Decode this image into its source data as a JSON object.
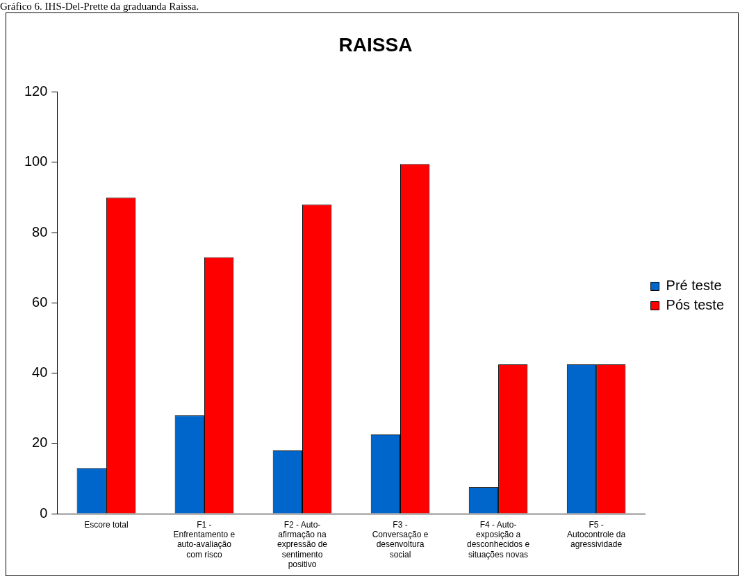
{
  "chart_data": {
    "type": "bar",
    "title": "RAISSA",
    "annotations": [
      "Gráfico 6. IHS-Del-Prette da graduanda Raissa."
    ],
    "categories": [
      "Escore total",
      "F1 - Enfrentamento e auto-avaliação com risco",
      "F2 - Auto-afirmação na expressão de sentimento positivo",
      "F3 - Conversação e desenvoltura social",
      "F4 - Auto-exposição a desconhecidos e situações novas",
      "F5 - Autocontrole da agressividade"
    ],
    "series": [
      {
        "name": "Pré teste",
        "color": "#0066cc",
        "values": [
          13,
          28,
          18,
          22.5,
          7.5,
          42.5
        ]
      },
      {
        "name": "Pós teste",
        "color": "#ff0000",
        "values": [
          90,
          73,
          88,
          99.5,
          42.5,
          42.5
        ]
      }
    ],
    "ylim": [
      0,
      120
    ],
    "yticks": [
      0,
      20,
      40,
      60,
      80,
      100,
      120
    ],
    "grid": false,
    "legend": "right"
  }
}
